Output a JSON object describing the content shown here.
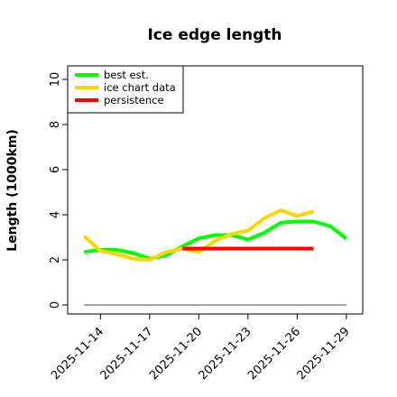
{
  "chart_data": {
    "type": "line",
    "title": "Ice edge length",
    "xlabel": "",
    "ylabel": "Length (1000km)",
    "ylim": [
      -0.4,
      10.6
    ],
    "xlim": [
      "2025-11-12",
      "2025-11-30"
    ],
    "yticks": [
      0,
      2,
      4,
      6,
      8,
      10
    ],
    "xticks": [
      "2025-11-14",
      "2025-11-17",
      "2025-11-20",
      "2025-11-23",
      "2025-11-26",
      "2025-11-29"
    ],
    "grid": false,
    "legend_position": "top-left",
    "series": [
      {
        "name": "best est.",
        "color": "#00ff00",
        "points": [
          [
            "2025-11-13",
            2.35
          ],
          [
            "2025-11-14",
            2.45
          ],
          [
            "2025-11-15",
            2.45
          ],
          [
            "2025-11-16",
            2.3
          ],
          [
            "2025-11-17",
            2.05
          ],
          [
            "2025-11-18",
            2.2
          ],
          [
            "2025-11-19",
            2.6
          ],
          [
            "2025-11-20",
            2.95
          ],
          [
            "2025-11-21",
            3.1
          ],
          [
            "2025-11-22",
            3.1
          ],
          [
            "2025-11-23",
            2.9
          ],
          [
            "2025-11-24",
            3.2
          ],
          [
            "2025-11-25",
            3.65
          ],
          [
            "2025-11-26",
            3.7
          ],
          [
            "2025-11-27",
            3.7
          ],
          [
            "2025-11-28",
            3.5
          ],
          [
            "2025-11-29",
            2.95
          ]
        ]
      },
      {
        "name": "ice chart data",
        "color": "#ffd700",
        "points": [
          [
            "2025-11-13",
            3.05
          ],
          [
            "2025-11-14",
            2.4
          ],
          [
            "2025-11-15",
            2.25
          ],
          [
            "2025-11-16",
            2.05
          ],
          [
            "2025-11-17",
            2.0
          ],
          [
            "2025-11-18",
            2.35
          ],
          [
            "2025-11-19",
            2.5
          ],
          [
            "2025-11-20",
            2.35
          ],
          [
            "2025-11-21",
            2.85
          ],
          [
            "2025-11-22",
            3.15
          ],
          [
            "2025-11-23",
            3.3
          ],
          [
            "2025-11-24",
            3.85
          ],
          [
            "2025-11-25",
            4.2
          ],
          [
            "2025-11-26",
            3.95
          ],
          [
            "2025-11-27",
            4.15
          ]
        ]
      },
      {
        "name": "persistence",
        "color": "#ff0000",
        "points": [
          [
            "2025-11-19",
            2.5
          ],
          [
            "2025-11-27",
            2.5
          ]
        ]
      }
    ],
    "reference_line": {
      "y": 0,
      "x_from": "2025-11-13",
      "x_to": "2025-11-29",
      "color": "#888888"
    }
  }
}
